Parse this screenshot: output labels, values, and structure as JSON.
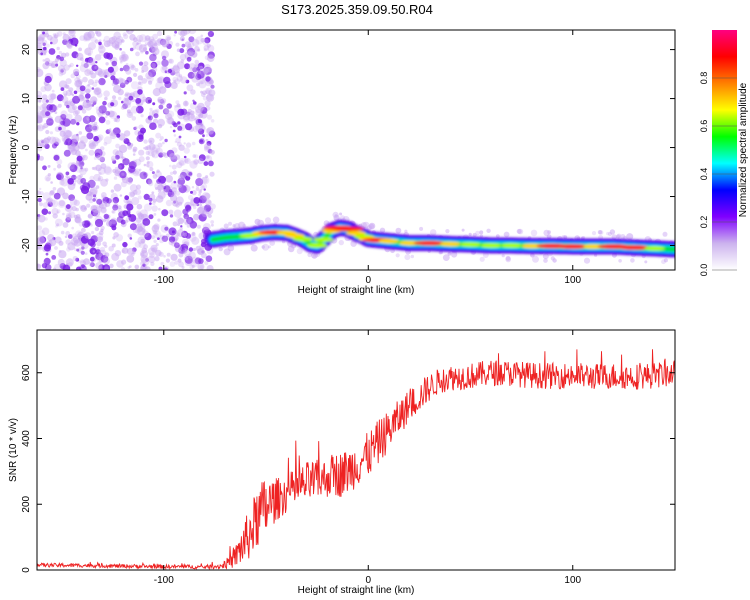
{
  "title": "S173.2025.359.09.50.R04",
  "chart_data": [
    {
      "type": "heatmap",
      "xlabel": "Height of straight line (km)",
      "ylabel": "Frequency (Hz)",
      "xlim": [
        -162,
        150
      ],
      "ylim": [
        -25,
        24
      ],
      "xticks": [
        -100,
        0,
        100
      ],
      "yticks": [
        -20,
        -10,
        0,
        10,
        20
      ],
      "grid": false,
      "colorbar": {
        "label": "Normalized spectral amplitude",
        "range": [
          0,
          1
        ],
        "ticks": [
          0.0,
          0.2,
          0.4,
          0.6,
          0.8
        ],
        "colors": [
          "#ffffff",
          "#ccb3ee",
          "#7f00ff",
          "#0000ff",
          "#00ffff",
          "#00ff00",
          "#ffff00",
          "#ff8000",
          "#ff0000",
          "#ff0080"
        ]
      },
      "noise_region": {
        "x": [
          -162,
          -76
        ],
        "y": [
          -25,
          24
        ],
        "amplitude": 0.1
      },
      "ridge": {
        "x": [
          -76,
          -70,
          -64,
          -58,
          -52,
          -46,
          -40,
          -36,
          -32,
          -28,
          -25,
          -22,
          -18,
          -14,
          -10,
          -6,
          -2,
          0,
          5,
          10,
          20,
          30,
          40,
          50,
          60,
          70,
          80,
          90,
          100,
          110,
          120,
          130,
          140,
          150
        ],
        "y": [
          -18.8,
          -18.4,
          -18.2,
          -18.0,
          -17.5,
          -17.3,
          -17.4,
          -18.0,
          -18.7,
          -19.8,
          -20.0,
          -18.8,
          -17.0,
          -16.4,
          -16.6,
          -17.5,
          -18.2,
          -18.7,
          -18.9,
          -19.1,
          -19.5,
          -19.5,
          -19.7,
          -19.8,
          -20.0,
          -20.0,
          -20.1,
          -20.1,
          -20.2,
          -20.2,
          -20.2,
          -20.4,
          -20.6,
          -20.8
        ],
        "amplitude": [
          0.3,
          0.35,
          0.45,
          0.6,
          0.7,
          0.75,
          0.7,
          0.65,
          0.55,
          0.5,
          0.55,
          0.6,
          0.7,
          0.8,
          0.75,
          0.65,
          0.6,
          0.7,
          0.75,
          0.7,
          0.65,
          0.8,
          0.65,
          0.6,
          0.55,
          0.6,
          0.7,
          0.8,
          0.75,
          0.7,
          0.8,
          0.75,
          0.6,
          0.45
        ]
      }
    },
    {
      "type": "line",
      "xlabel": "Height of straight line (km)",
      "ylabel": "SNR (10 * v/v)",
      "xlim": [
        -162,
        150
      ],
      "ylim": [
        0,
        730
      ],
      "xticks": [
        -100,
        0,
        100
      ],
      "yticks": [
        0,
        200,
        400,
        600
      ],
      "grid": false,
      "series": [
        {
          "color": "#ee2222",
          "x": [
            -162,
            -140,
            -120,
            -100,
            -90,
            -80,
            -72,
            -66,
            -62,
            -58,
            -54,
            -50,
            -46,
            -42,
            -38,
            -34,
            -30,
            -26,
            -22,
            -18,
            -14,
            -10,
            -6,
            -2,
            0,
            4,
            8,
            12,
            16,
            20,
            24,
            28,
            32,
            36,
            40,
            50,
            60,
            70,
            80,
            90,
            100,
            110,
            120,
            130,
            140,
            150
          ],
          "mean": [
            15,
            14,
            12,
            10,
            10,
            9,
            12,
            30,
            70,
            110,
            160,
            190,
            210,
            225,
            240,
            250,
            265,
            270,
            275,
            290,
            290,
            300,
            320,
            340,
            350,
            380,
            410,
            440,
            470,
            500,
            520,
            545,
            565,
            578,
            585,
            590,
            600,
            598,
            592,
            590,
            592,
            588,
            590,
            588,
            592,
            600
          ],
          "noise": [
            6,
            6,
            6,
            6,
            6,
            6,
            8,
            25,
            60,
            80,
            95,
            100,
            70,
            60,
            60,
            60,
            65,
            65,
            60,
            65,
            70,
            70,
            70,
            70,
            70,
            70,
            65,
            60,
            55,
            50,
            45,
            45,
            40,
            40,
            40,
            40,
            40,
            40,
            40,
            40,
            40,
            40,
            40,
            40,
            40,
            40
          ]
        }
      ]
    }
  ]
}
